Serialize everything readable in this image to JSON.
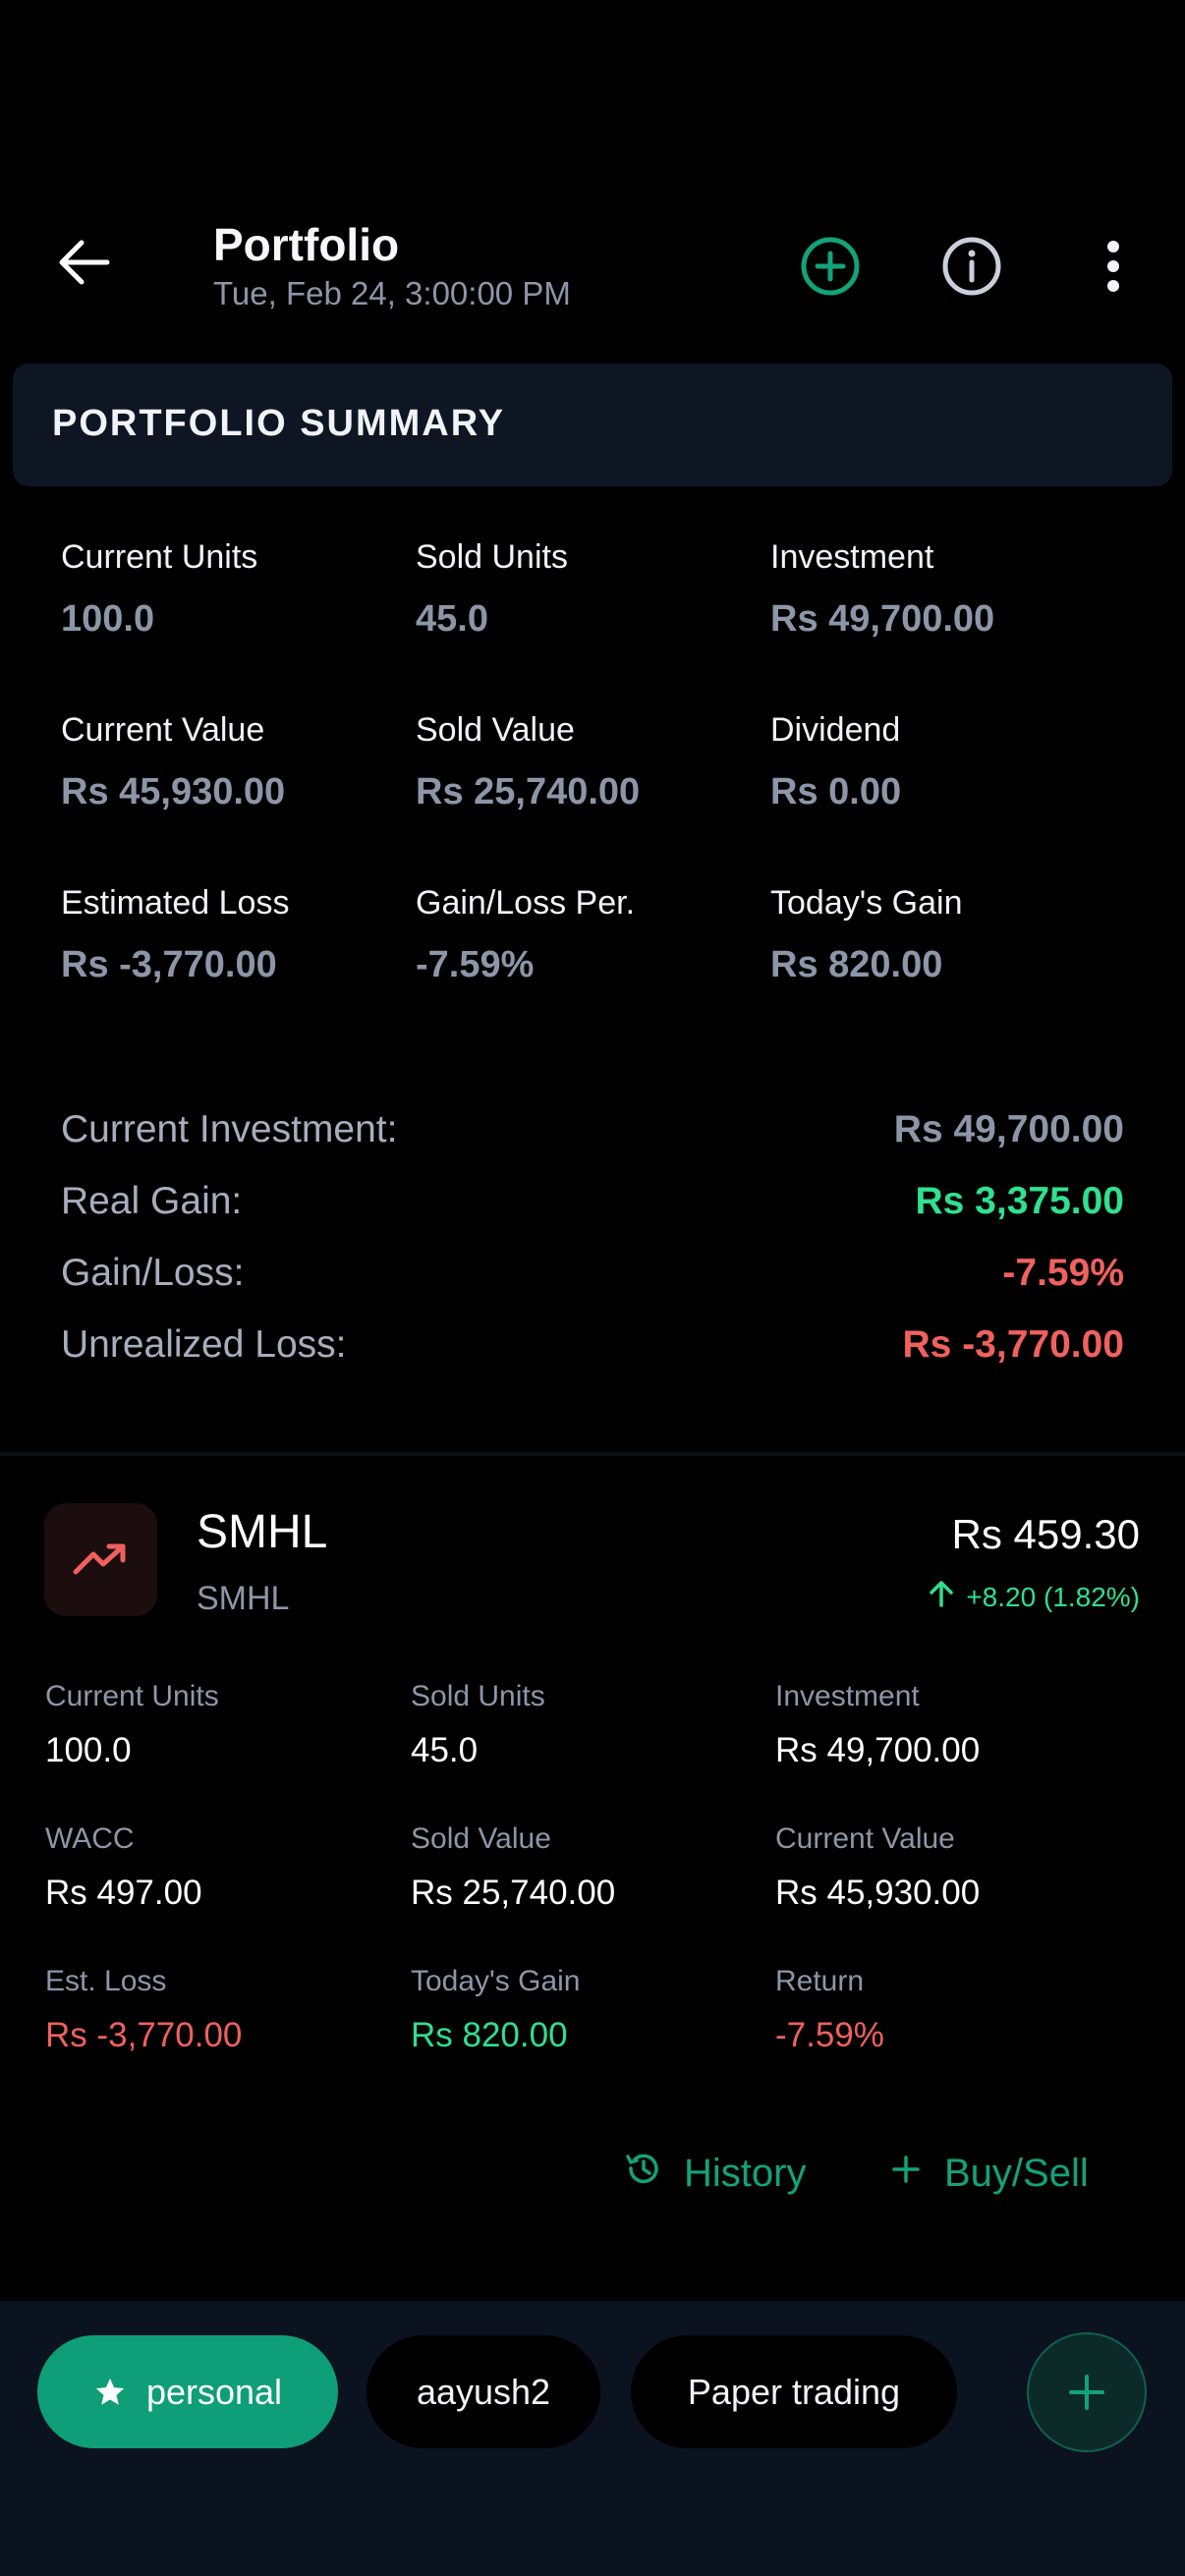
{
  "header": {
    "title": "Portfolio",
    "subtitle": "Tue, Feb 24, 3:00:00 PM"
  },
  "summary": {
    "heading": "PORTFOLIO SUMMARY",
    "grid": [
      {
        "label": "Current Units",
        "value": "100.0"
      },
      {
        "label": "Sold Units",
        "value": "45.0"
      },
      {
        "label": "Investment",
        "value": "Rs 49,700.00"
      },
      {
        "label": "Current Value",
        "value": "Rs 45,930.00"
      },
      {
        "label": "Sold Value",
        "value": "Rs 25,740.00"
      },
      {
        "label": "Dividend",
        "value": "Rs 0.00"
      },
      {
        "label": "Estimated Loss",
        "value": "Rs -3,770.00"
      },
      {
        "label": "Gain/Loss Per.",
        "value": "-7.59%"
      },
      {
        "label": "Today's Gain",
        "value": "Rs 820.00"
      }
    ],
    "rows": [
      {
        "label": "Current Investment:",
        "value": "Rs 49,700.00",
        "color": "#8d96a8"
      },
      {
        "label": "Real Gain:",
        "value": "Rs 3,375.00",
        "color": "#2fe08f"
      },
      {
        "label": "Gain/Loss:",
        "value": "-7.59%",
        "color": "#f0615e"
      },
      {
        "label": "Unrealized Loss:",
        "value": "Rs -3,770.00",
        "color": "#f0615e"
      }
    ]
  },
  "stock": {
    "symbol": "SMHL",
    "name": "SMHL",
    "price": "Rs 459.30",
    "change": "+8.20 (1.82%)",
    "grid": [
      {
        "label": "Current Units",
        "value": "100.0",
        "color": "#ffffff"
      },
      {
        "label": "Sold Units",
        "value": "45.0",
        "color": "#ffffff"
      },
      {
        "label": "Investment",
        "value": "Rs 49,700.00",
        "color": "#ffffff"
      },
      {
        "label": "WACC",
        "value": "Rs 497.00",
        "color": "#ffffff"
      },
      {
        "label": "Sold Value",
        "value": "Rs 25,740.00",
        "color": "#ffffff"
      },
      {
        "label": "Current Value",
        "value": "Rs 45,930.00",
        "color": "#ffffff"
      },
      {
        "label": "Est. Loss",
        "value": "Rs -3,770.00",
        "color": "#f0615e"
      },
      {
        "label": "Today's Gain",
        "value": "Rs 820.00",
        "color": "#2fe08f"
      },
      {
        "label": "Return",
        "value": "-7.59%",
        "color": "#f0615e"
      }
    ],
    "actions": {
      "history": "History",
      "buy_sell": "Buy/Sell"
    }
  },
  "portfolios": {
    "tabs": [
      {
        "label": "personal",
        "active": true
      },
      {
        "label": "aayush2",
        "active": false
      },
      {
        "label": "Paper trading",
        "active": false
      }
    ]
  },
  "colors": {
    "accent": "#0e9e78",
    "gain": "#2fe08f",
    "loss": "#f0615e",
    "muted": "#8d96a8"
  }
}
